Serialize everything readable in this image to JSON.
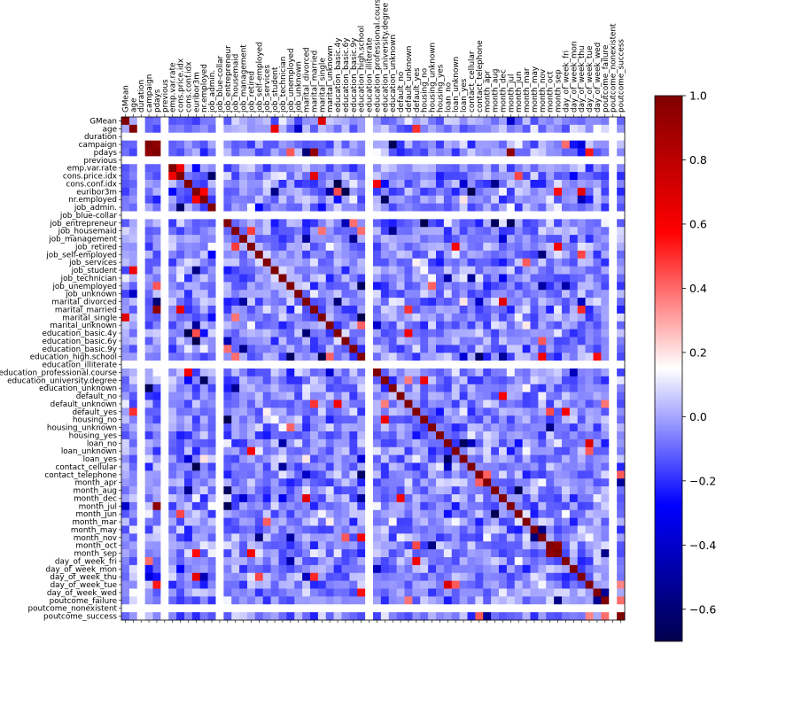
{
  "chart_data": {
    "type": "heatmap",
    "title": "",
    "xlabel": "",
    "ylabel": "",
    "colormap": "seismic",
    "colormap_stops": [
      "#00004c",
      "#0000ff",
      "#ffffff",
      "#ff0000",
      "#800000"
    ],
    "vlim": [
      -0.7,
      1.0
    ],
    "labels": [
      "GMean",
      "age",
      "duration",
      "campaign",
      "pdays",
      "previous",
      "emp.var.rate",
      "cons.price.idx",
      "cons.conf.idx",
      "euribor3m",
      "nr.employed",
      "job_admin.",
      "job_blue-collar",
      "job_entrepreneur",
      "job_housemaid",
      "job_management",
      "job_retired",
      "job_self-employed",
      "job_services",
      "job_student",
      "job_technician",
      "job_unemployed",
      "job_unknown",
      "marital_divorced",
      "marital_married",
      "marital_single",
      "marital_unknown",
      "education_basic.4y",
      "education_basic.6y",
      "education_basic.9y",
      "education_high.school",
      "education_illiterate",
      "education_professional.course",
      "education_university.degree",
      "education_unknown",
      "default_no",
      "default_unknown",
      "default_yes",
      "housing_no",
      "housing_unknown",
      "housing_yes",
      "loan_no",
      "loan_unknown",
      "loan_yes",
      "contact_cellular",
      "contact_telephone",
      "month_apr",
      "month_aug",
      "month_dec",
      "month_jul",
      "month_jun",
      "month_mar",
      "month_may",
      "month_nov",
      "month_oct",
      "month_sep",
      "day_of_week_fri",
      "day_of_week_mon",
      "day_of_week_thu",
      "day_of_week_tue",
      "day_of_week_wed",
      "poutcome_failure",
      "poutcome_nonexistent",
      "poutcome_success"
    ],
    "blank_rows": [
      "duration",
      "previous",
      "job_blue-collar",
      "education_illiterate",
      "poutcome_nonexistent"
    ],
    "colorbar": {
      "ticks": [
        -0.6,
        -0.4,
        -0.2,
        0.0,
        0.2,
        0.4,
        0.6,
        0.8,
        1.0
      ],
      "tick_labels": [
        "−0.6",
        "−0.4",
        "−0.2",
        "0.0",
        "0.2",
        "0.4",
        "0.6",
        "0.8",
        "1.0"
      ]
    },
    "notable_values": [
      {
        "row": "pdays",
        "col": "campaign",
        "value": 0.95
      },
      {
        "row": "marital_married",
        "col": "pdays",
        "value": 0.95
      },
      {
        "row": "month_jul",
        "col": "pdays",
        "value": 0.95
      },
      {
        "row": "education_basic.4y",
        "col": "cons.conf.idx",
        "value": -0.7
      },
      {
        "row": "euribor3m",
        "col": "education_basic.6y",
        "value": -0.7
      },
      {
        "row": "euribor3m",
        "col": "contact_cellular",
        "value": -0.7
      },
      {
        "row": "month_sep",
        "col": "month_oct",
        "value": 0.95
      },
      {
        "row": "month_oct",
        "col": "month_sep",
        "value": 0.95
      },
      {
        "row": "poutcome_success",
        "col": "poutcome_success",
        "value": 1.0
      }
    ]
  }
}
